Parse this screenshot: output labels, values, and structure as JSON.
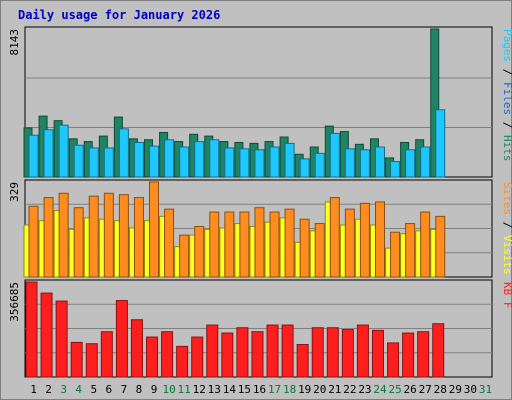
{
  "title": "Daily usage for January 2026",
  "colors": {
    "background": "#c0c0c0",
    "title": "#0000c0",
    "hits": "#1e8464",
    "files": "#1ec8ff",
    "sites": "#ffff20",
    "visits": "#ff8c1e",
    "kbytes": "#ff1e1e",
    "weekday_label": "#000000",
    "weekend_label": "#007840"
  },
  "chart_data": [
    {
      "type": "bar",
      "name": "hits-files",
      "categories": [
        "1",
        "2",
        "3",
        "4",
        "5",
        "6",
        "7",
        "8",
        "9",
        "10",
        "11",
        "12",
        "13",
        "14",
        "15",
        "16",
        "17",
        "18",
        "19",
        "20",
        "21",
        "22",
        "23",
        "24",
        "25",
        "26",
        "27",
        "28",
        "29",
        "30",
        "31"
      ],
      "ylim": [
        0,
        8143
      ],
      "max_label": "8143",
      "right_label_parts": [
        "Pages",
        " / ",
        "Files",
        " / ",
        "Hits"
      ],
      "right_label_colors": [
        "#1ec8ff",
        "#000000",
        "#1e64c8",
        "#000000",
        "#1e8464"
      ],
      "series": [
        {
          "name": "Hits",
          "values": [
            2700,
            3350,
            3100,
            2100,
            1950,
            2250,
            3300,
            2100,
            2050,
            2450,
            1950,
            2350,
            2250,
            1950,
            1900,
            1850,
            1950,
            2200,
            1250,
            1650,
            2800,
            2500,
            1800,
            2100,
            1050,
            1900,
            2050,
            8143,
            0,
            0,
            0
          ]
        },
        {
          "name": "Files",
          "values": [
            2300,
            2600,
            2850,
            1750,
            1600,
            1600,
            2650,
            1900,
            1700,
            2050,
            1650,
            1950,
            2050,
            1600,
            1550,
            1500,
            1650,
            1850,
            1000,
            1300,
            2400,
            1550,
            1500,
            1650,
            850,
            1500,
            1650,
            3700,
            0,
            0,
            0
          ]
        }
      ]
    },
    {
      "type": "bar",
      "name": "sites-visits",
      "categories": [
        "1",
        "2",
        "3",
        "4",
        "5",
        "6",
        "7",
        "8",
        "9",
        "10",
        "11",
        "12",
        "13",
        "14",
        "15",
        "16",
        "17",
        "18",
        "19",
        "20",
        "21",
        "22",
        "23",
        "24",
        "25",
        "26",
        "27",
        "28",
        "29",
        "30",
        "31"
      ],
      "ylim": [
        0,
        329
      ],
      "max_label": "329",
      "right_label_parts": [
        "Sites",
        " / ",
        "Visits"
      ],
      "right_label_colors": [
        "#ff8c1e",
        "#000000",
        "#ffff20"
      ],
      "series": [
        {
          "name": "Sites",
          "values": [
            180,
            195,
            230,
            165,
            205,
            200,
            195,
            170,
            195,
            210,
            105,
            145,
            165,
            170,
            185,
            175,
            190,
            205,
            120,
            160,
            260,
            180,
            200,
            180,
            100,
            150,
            160,
            165,
            0,
            0,
            0
          ]
        },
        {
          "name": "Visits",
          "values": [
            245,
            275,
            290,
            240,
            280,
            290,
            285,
            275,
            329,
            235,
            145,
            175,
            225,
            225,
            225,
            240,
            225,
            235,
            200,
            185,
            275,
            235,
            255,
            260,
            155,
            185,
            225,
            210,
            0,
            0,
            0
          ]
        }
      ]
    },
    {
      "type": "bar",
      "name": "kbytes",
      "categories": [
        "1",
        "2",
        "3",
        "4",
        "5",
        "6",
        "7",
        "8",
        "9",
        "10",
        "11",
        "12",
        "13",
        "14",
        "15",
        "16",
        "17",
        "18",
        "19",
        "20",
        "21",
        "22",
        "23",
        "24",
        "25",
        "26",
        "27",
        "28",
        "29",
        "30",
        "31"
      ],
      "ylim": [
        0,
        356685
      ],
      "max_label": "356685",
      "right_label_parts": [
        "KB F"
      ],
      "right_label_colors": [
        "#ff1e1e"
      ],
      "series": [
        {
          "name": "KBytes",
          "values": [
            356685,
            315000,
            285000,
            130000,
            125000,
            170000,
            287000,
            215000,
            150000,
            170000,
            115000,
            150000,
            195000,
            165000,
            185000,
            170000,
            195000,
            195000,
            122000,
            185000,
            185000,
            178000,
            195000,
            175000,
            128000,
            165000,
            170000,
            200000,
            0,
            0,
            0
          ]
        }
      ]
    }
  ],
  "days": [
    {
      "label": "1",
      "weekend": false
    },
    {
      "label": "2",
      "weekend": false
    },
    {
      "label": "3",
      "weekend": true
    },
    {
      "label": "4",
      "weekend": true
    },
    {
      "label": "5",
      "weekend": false
    },
    {
      "label": "6",
      "weekend": false
    },
    {
      "label": "7",
      "weekend": false
    },
    {
      "label": "8",
      "weekend": false
    },
    {
      "label": "9",
      "weekend": false
    },
    {
      "label": "10",
      "weekend": true
    },
    {
      "label": "11",
      "weekend": true
    },
    {
      "label": "12",
      "weekend": false
    },
    {
      "label": "13",
      "weekend": false
    },
    {
      "label": "14",
      "weekend": false
    },
    {
      "label": "15",
      "weekend": false
    },
    {
      "label": "16",
      "weekend": false
    },
    {
      "label": "17",
      "weekend": true
    },
    {
      "label": "18",
      "weekend": true
    },
    {
      "label": "19",
      "weekend": false
    },
    {
      "label": "20",
      "weekend": false
    },
    {
      "label": "21",
      "weekend": false
    },
    {
      "label": "22",
      "weekend": false
    },
    {
      "label": "23",
      "weekend": false
    },
    {
      "label": "24",
      "weekend": true
    },
    {
      "label": "25",
      "weekend": true
    },
    {
      "label": "26",
      "weekend": false
    },
    {
      "label": "27",
      "weekend": false
    },
    {
      "label": "28",
      "weekend": false
    },
    {
      "label": "29",
      "weekend": false
    },
    {
      "label": "30",
      "weekend": false
    },
    {
      "label": "31",
      "weekend": true
    }
  ]
}
